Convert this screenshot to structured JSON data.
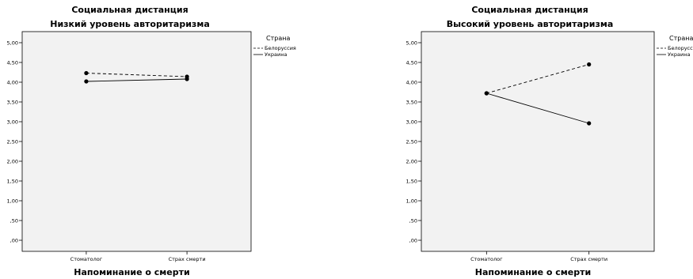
{
  "chart_data": [
    {
      "type": "line",
      "title": "Социальная дистанция",
      "subtitle": "Низкий уровень авторитаризма",
      "xlabel": "Напоминание о смерти",
      "ylabel": "",
      "categories": [
        "Стоматолог",
        "Страх смерти"
      ],
      "y_ticks": [
        "5,00",
        "4,50",
        "4,00",
        "3,50",
        "3,00",
        "2,50",
        "2,00",
        "1,50",
        "1,00",
        ",50",
        ",00"
      ],
      "ylim": [
        0,
        5.3
      ],
      "legend_title": "Страна",
      "legend_position": "top-right",
      "grid": false,
      "series": [
        {
          "name": "Белоруссия",
          "style": "dashed",
          "values": [
            4.23,
            4.14
          ]
        },
        {
          "name": "Украина",
          "style": "solid",
          "values": [
            4.02,
            4.08
          ]
        }
      ]
    },
    {
      "type": "line",
      "title": "Социальная дистанция",
      "subtitle": "Высокий уровень авторитаризма",
      "xlabel": "Напоминание о смерти",
      "ylabel": "",
      "categories": [
        "Стоматолог",
        "Страх смерти"
      ],
      "y_ticks": [
        "5,00",
        "4,50",
        "4,00",
        "3,50",
        "3,00",
        "2,50",
        "2,00",
        "1,50",
        "1,00",
        ",50",
        ",00"
      ],
      "ylim": [
        0,
        5.3
      ],
      "legend_title": "Страна",
      "legend_position": "top-right",
      "grid": false,
      "series": [
        {
          "name": "Белоруссия",
          "style": "dashed",
          "values": [
            3.72,
            4.45
          ]
        },
        {
          "name": "Украина",
          "style": "solid",
          "values": [
            3.72,
            2.96
          ]
        }
      ]
    }
  ],
  "colors": {
    "plot_bg": "#f2f2f2",
    "line": "#000000",
    "axis": "#000000"
  }
}
